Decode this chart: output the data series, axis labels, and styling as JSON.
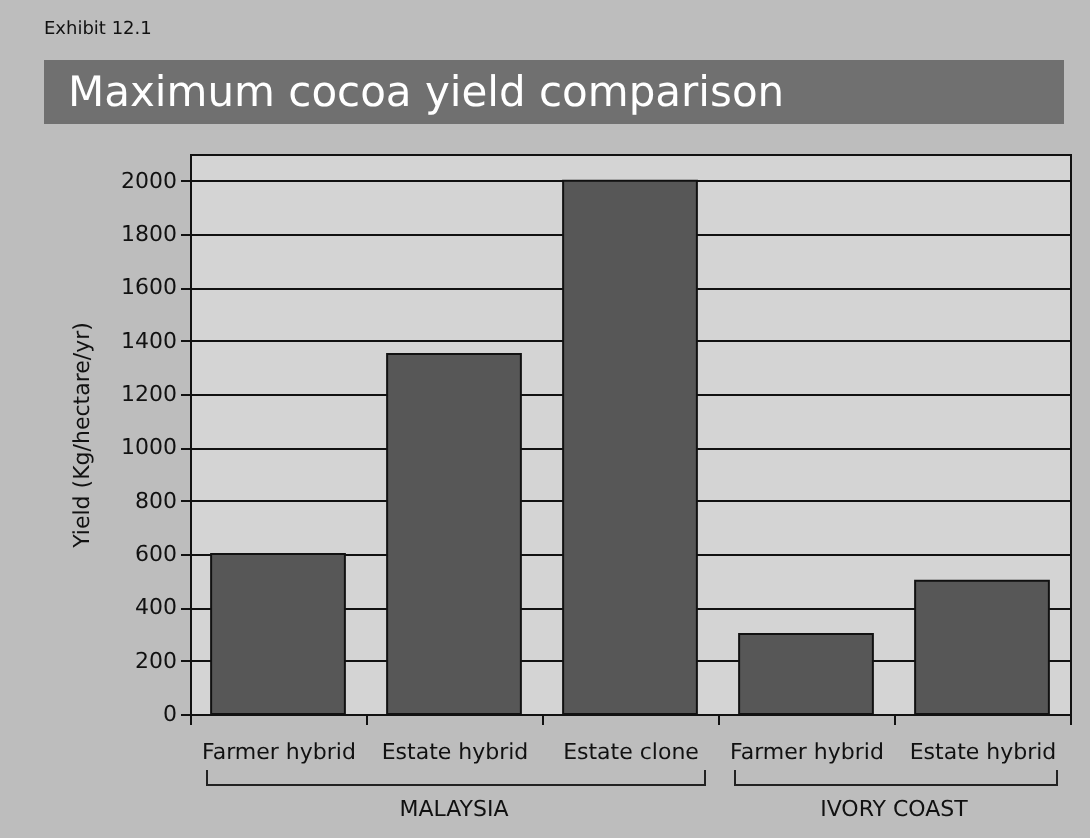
{
  "chart_data": {
    "type": "bar",
    "title": "Maximum cocoa yield comparison",
    "categories": [
      "Farmer hybrid",
      "Estate hybrid",
      "Estate clone",
      "Farmer hybrid",
      "Estate hybrid"
    ],
    "values": [
      600,
      1350,
      2000,
      300,
      500
    ],
    "color": "#575757",
    "ylabel": "Yield (Kg/hectare/yr)",
    "ylim": [
      0,
      2100
    ],
    "yticks": [
      0,
      200,
      400,
      600,
      800,
      1000,
      1200,
      1400,
      1600,
      1800,
      2000
    ],
    "grid": "y",
    "annotations": [
      "Exhibit 12.1",
      "MALAYSIA",
      "IVORY COAST"
    ]
  }
}
